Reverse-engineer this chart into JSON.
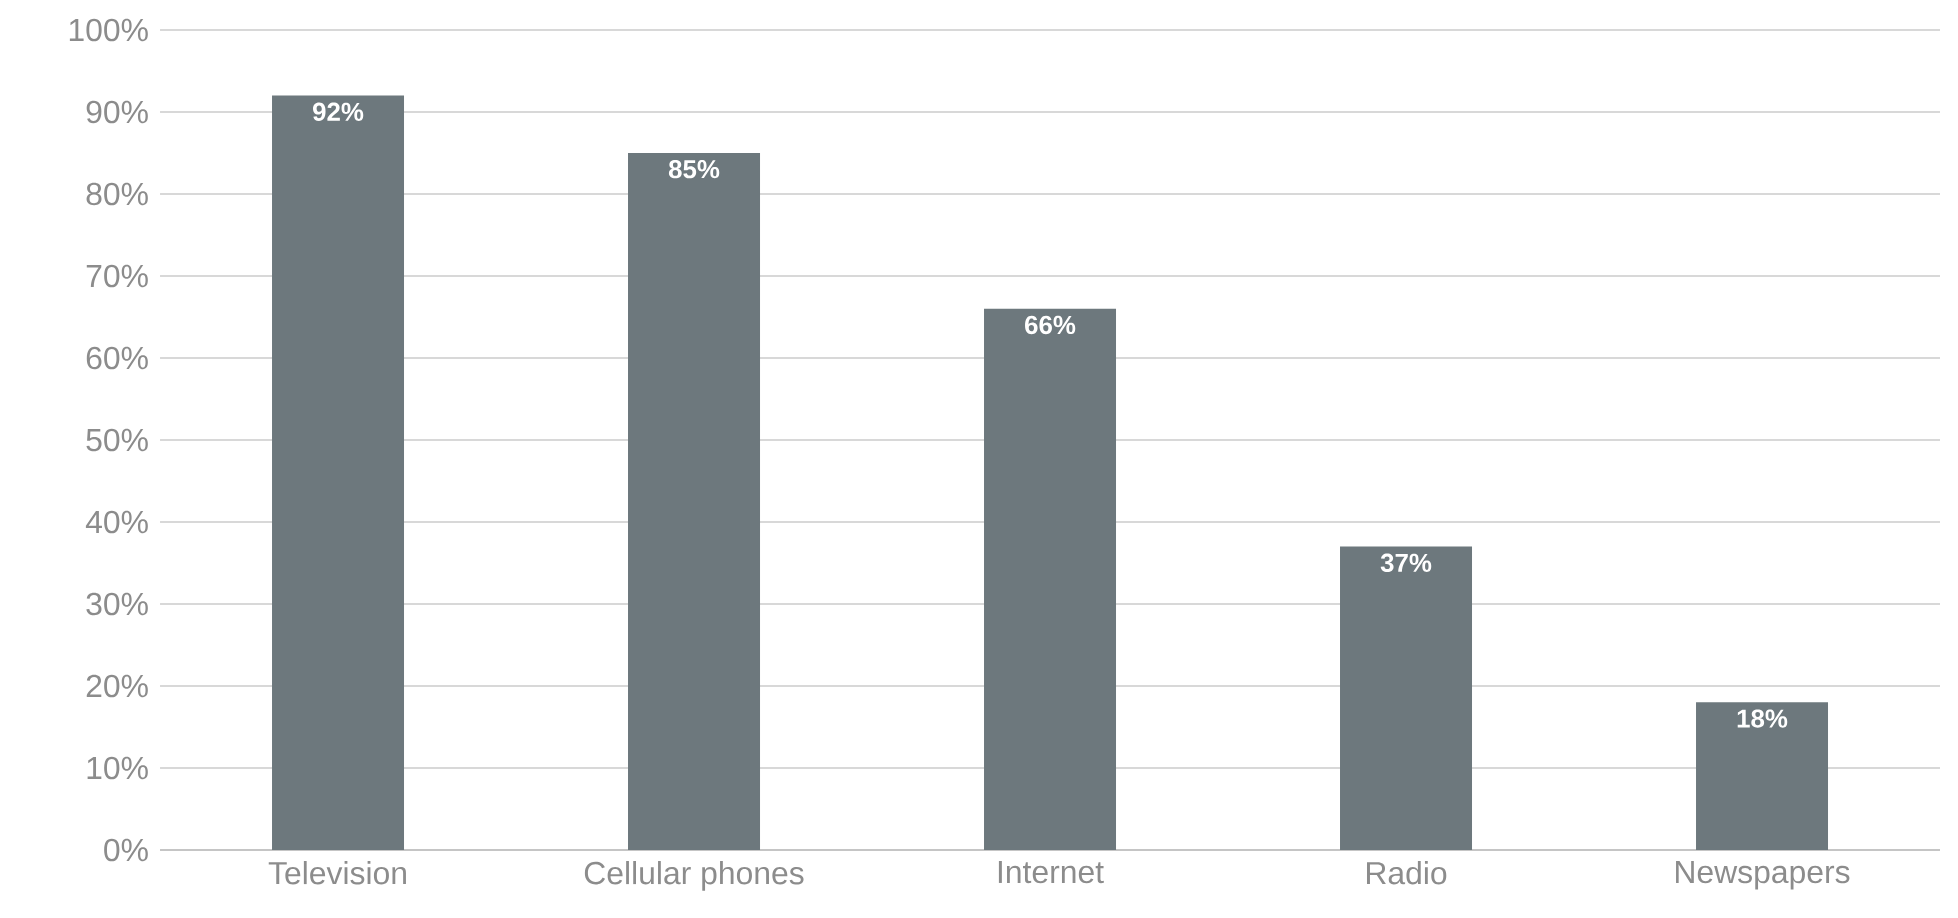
{
  "chart_data": {
    "type": "bar",
    "categories": [
      "Television",
      "Cellular phones",
      "Internet",
      "Radio",
      "Newspapers"
    ],
    "values": [
      92,
      85,
      66,
      37,
      18
    ],
    "value_labels": [
      "92%",
      "85%",
      "66%",
      "37%",
      "18%"
    ],
    "color": "#6d787d",
    "ylim": [
      0,
      100
    ],
    "yticks": [
      {
        "value": 0,
        "label": "0%"
      },
      {
        "value": 10,
        "label": "10%"
      },
      {
        "value": 20,
        "label": "20%"
      },
      {
        "value": 30,
        "label": "30%"
      },
      {
        "value": 40,
        "label": "40%"
      },
      {
        "value": 50,
        "label": "50%"
      },
      {
        "value": 60,
        "label": "60%"
      },
      {
        "value": 70,
        "label": "70%"
      },
      {
        "value": 80,
        "label": "80%"
      },
      {
        "value": 90,
        "label": "90%"
      },
      {
        "value": 100,
        "label": "100%"
      }
    ],
    "grid": "y"
  }
}
